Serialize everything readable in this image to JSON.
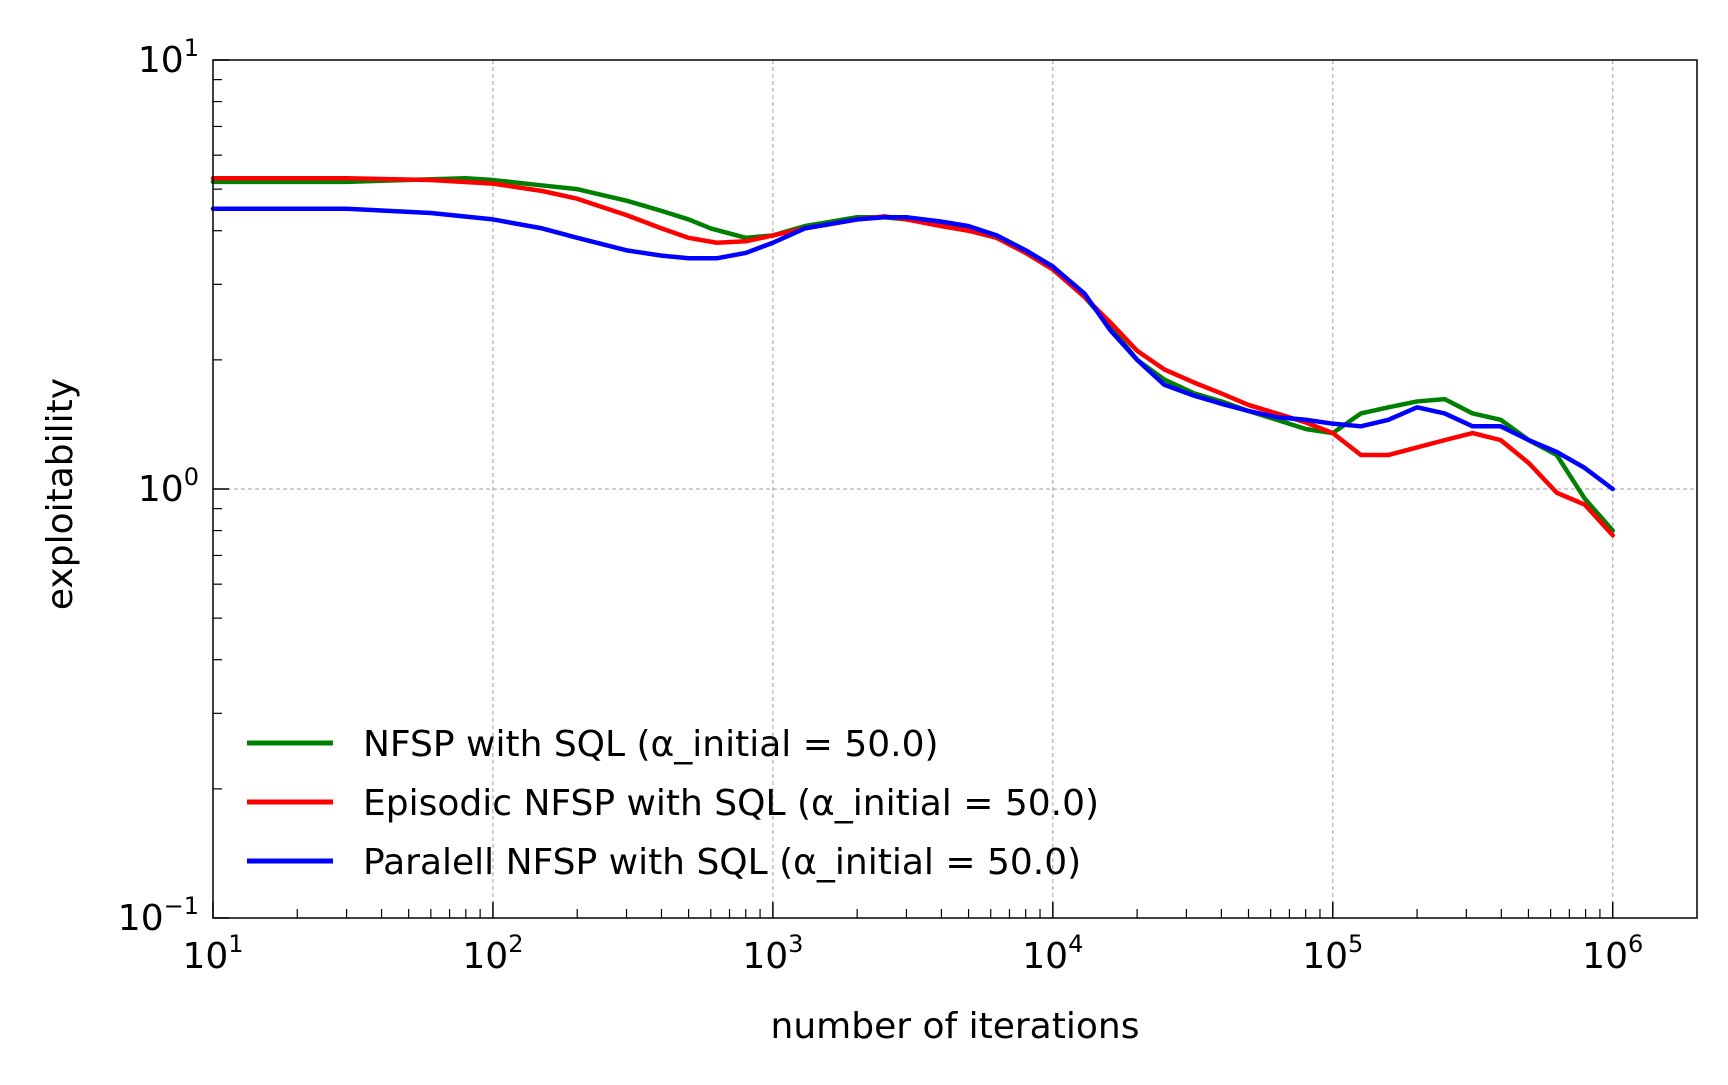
{
  "chart_data": {
    "type": "line",
    "title": "",
    "xlabel": "number of iterations",
    "ylabel": "exploitability",
    "xscale": "log",
    "yscale": "log",
    "xlim": [
      10,
      2000000
    ],
    "ylim": [
      0.1,
      10
    ],
    "grid": true,
    "legend_position": "lower-left",
    "x_ticks": [
      {
        "value": 10,
        "base": "10",
        "exp": "1"
      },
      {
        "value": 100,
        "base": "10",
        "exp": "2"
      },
      {
        "value": 1000,
        "base": "10",
        "exp": "3"
      },
      {
        "value": 10000,
        "base": "10",
        "exp": "4"
      },
      {
        "value": 100000,
        "base": "10",
        "exp": "5"
      },
      {
        "value": 1000000,
        "base": "10",
        "exp": "6"
      }
    ],
    "y_ticks": [
      {
        "value": 0.1,
        "base": "10",
        "exp": "−1"
      },
      {
        "value": 1,
        "base": "10",
        "exp": "0"
      },
      {
        "value": 10,
        "base": "10",
        "exp": "1"
      }
    ],
    "series": [
      {
        "name": "NFSP with SQL (α_initial = 50.0)",
        "color": "#008000",
        "points": [
          [
            10,
            5.2
          ],
          [
            30,
            5.2
          ],
          [
            80,
            5.3
          ],
          [
            100,
            5.25
          ],
          [
            150,
            5.1
          ],
          [
            200,
            5.0
          ],
          [
            300,
            4.7
          ],
          [
            400,
            4.45
          ],
          [
            500,
            4.25
          ],
          [
            600,
            4.05
          ],
          [
            800,
            3.85
          ],
          [
            1000,
            3.9
          ],
          [
            1300,
            4.1
          ],
          [
            2000,
            4.3
          ],
          [
            2500,
            4.3
          ],
          [
            3000,
            4.25
          ],
          [
            4000,
            4.15
          ],
          [
            5000,
            4.05
          ],
          [
            6300,
            3.9
          ],
          [
            8000,
            3.6
          ],
          [
            10000,
            3.3
          ],
          [
            13000,
            2.8
          ],
          [
            16000,
            2.4
          ],
          [
            20000,
            2.0
          ],
          [
            25000,
            1.8
          ],
          [
            32000,
            1.67
          ],
          [
            40000,
            1.6
          ],
          [
            50000,
            1.52
          ],
          [
            63000,
            1.45
          ],
          [
            80000,
            1.38
          ],
          [
            100000,
            1.35
          ],
          [
            126000,
            1.5
          ],
          [
            158000,
            1.55
          ],
          [
            200000,
            1.6
          ],
          [
            251000,
            1.62
          ],
          [
            316000,
            1.5
          ],
          [
            398000,
            1.45
          ],
          [
            501000,
            1.3
          ],
          [
            631000,
            1.2
          ],
          [
            794000,
            0.95
          ],
          [
            1000000,
            0.8
          ]
        ]
      },
      {
        "name": "Episodic NFSP with SQL (α_initial = 50.0)",
        "color": "#ff0000",
        "points": [
          [
            10,
            5.3
          ],
          [
            30,
            5.3
          ],
          [
            60,
            5.25
          ],
          [
            100,
            5.15
          ],
          [
            150,
            4.95
          ],
          [
            200,
            4.75
          ],
          [
            300,
            4.35
          ],
          [
            400,
            4.05
          ],
          [
            500,
            3.85
          ],
          [
            630,
            3.75
          ],
          [
            800,
            3.78
          ],
          [
            1000,
            3.9
          ],
          [
            1300,
            4.05
          ],
          [
            2000,
            4.25
          ],
          [
            2500,
            4.32
          ],
          [
            3000,
            4.25
          ],
          [
            4000,
            4.1
          ],
          [
            5000,
            4.0
          ],
          [
            6300,
            3.85
          ],
          [
            8000,
            3.55
          ],
          [
            10000,
            3.25
          ],
          [
            13000,
            2.8
          ],
          [
            16000,
            2.45
          ],
          [
            20000,
            2.1
          ],
          [
            25000,
            1.9
          ],
          [
            32000,
            1.77
          ],
          [
            40000,
            1.67
          ],
          [
            50000,
            1.57
          ],
          [
            63000,
            1.5
          ],
          [
            80000,
            1.43
          ],
          [
            100000,
            1.35
          ],
          [
            126000,
            1.2
          ],
          [
            158000,
            1.2
          ],
          [
            200000,
            1.25
          ],
          [
            251000,
            1.3
          ],
          [
            316000,
            1.35
          ],
          [
            398000,
            1.3
          ],
          [
            501000,
            1.15
          ],
          [
            631000,
            0.98
          ],
          [
            794000,
            0.92
          ],
          [
            1000000,
            0.78
          ]
        ]
      },
      {
        "name": "Paralell NFSP with SQL (α_initial = 50.0)",
        "color": "#0000ff",
        "points": [
          [
            10,
            4.5
          ],
          [
            30,
            4.5
          ],
          [
            60,
            4.4
          ],
          [
            100,
            4.25
          ],
          [
            150,
            4.05
          ],
          [
            200,
            3.85
          ],
          [
            300,
            3.6
          ],
          [
            400,
            3.5
          ],
          [
            500,
            3.45
          ],
          [
            630,
            3.45
          ],
          [
            800,
            3.55
          ],
          [
            1000,
            3.75
          ],
          [
            1300,
            4.05
          ],
          [
            2000,
            4.25
          ],
          [
            2500,
            4.3
          ],
          [
            3000,
            4.3
          ],
          [
            4000,
            4.2
          ],
          [
            5000,
            4.1
          ],
          [
            6300,
            3.9
          ],
          [
            8000,
            3.6
          ],
          [
            10000,
            3.3
          ],
          [
            13000,
            2.85
          ],
          [
            16000,
            2.35
          ],
          [
            20000,
            2.0
          ],
          [
            25000,
            1.75
          ],
          [
            32000,
            1.65
          ],
          [
            40000,
            1.58
          ],
          [
            50000,
            1.52
          ],
          [
            63000,
            1.47
          ],
          [
            80000,
            1.45
          ],
          [
            100000,
            1.42
          ],
          [
            126000,
            1.4
          ],
          [
            158000,
            1.45
          ],
          [
            200000,
            1.55
          ],
          [
            251000,
            1.5
          ],
          [
            316000,
            1.4
          ],
          [
            398000,
            1.4
          ],
          [
            501000,
            1.3
          ],
          [
            631000,
            1.22
          ],
          [
            794000,
            1.12
          ],
          [
            1000000,
            1.0
          ]
        ]
      }
    ]
  }
}
